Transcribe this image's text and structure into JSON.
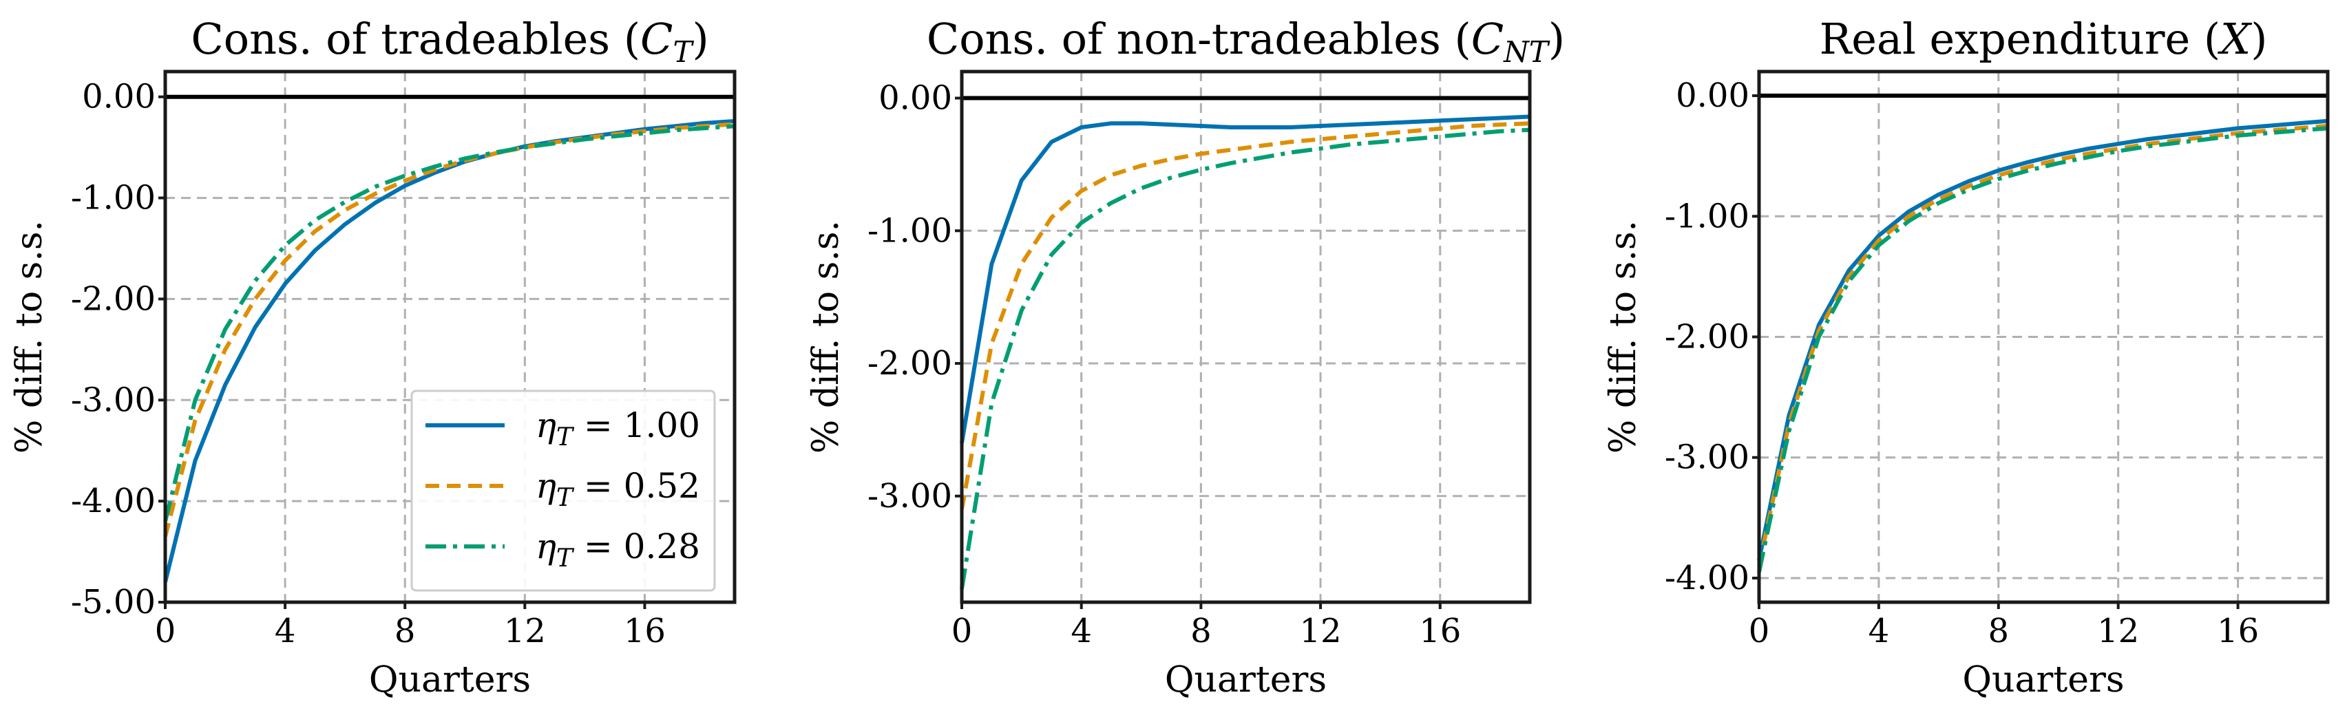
{
  "colors": {
    "series": [
      "#0072b2",
      "#de8f05",
      "#029e73"
    ]
  },
  "legend": {
    "placement": "lower-right",
    "panel_index": 0,
    "entries": [
      {
        "symbol": "η",
        "sub": "T",
        "value": " = 1.00"
      },
      {
        "symbol": "η",
        "sub": "T",
        "value": " = 0.52"
      },
      {
        "symbol": "η",
        "sub": "T",
        "value": " = 0.28"
      }
    ]
  },
  "chart_data": [
    {
      "type": "line",
      "title_text": "Cons. of tradeables (",
      "title_sym": "C",
      "title_sub": "T",
      "title_end": ")",
      "xlabel": "Quarters",
      "ylabel": "% diff. to s.s.",
      "xlim": [
        0,
        19
      ],
      "ylim": [
        -5.0,
        0.25
      ],
      "xticks": [
        0,
        4,
        8,
        12,
        16
      ],
      "yticks": [
        0.0,
        -1.0,
        -2.0,
        -3.0,
        -4.0,
        -5.0
      ],
      "ytick_labels": [
        "0.00",
        "-1.00",
        "-2.00",
        "-3.00",
        "-4.00",
        "-5.00"
      ],
      "grid": true,
      "x": [
        0,
        1,
        2,
        3,
        4,
        5,
        6,
        7,
        8,
        9,
        10,
        11,
        12,
        13,
        14,
        15,
        16,
        17,
        18,
        19
      ],
      "series": [
        {
          "name": "ηT = 1.00",
          "style": "solid",
          "values": [
            -4.8,
            -3.6,
            -2.85,
            -2.28,
            -1.85,
            -1.52,
            -1.26,
            -1.05,
            -0.88,
            -0.75,
            -0.64,
            -0.56,
            -0.49,
            -0.44,
            -0.4,
            -0.36,
            -0.32,
            -0.29,
            -0.26,
            -0.24
          ]
        },
        {
          "name": "ηT = 0.52",
          "style": "dashed",
          "values": [
            -4.35,
            -3.2,
            -2.5,
            -2.0,
            -1.62,
            -1.33,
            -1.12,
            -0.96,
            -0.83,
            -0.72,
            -0.63,
            -0.56,
            -0.5,
            -0.45,
            -0.41,
            -0.37,
            -0.34,
            -0.31,
            -0.29,
            -0.27
          ]
        },
        {
          "name": "ηT = 0.28",
          "style": "dashdot",
          "values": [
            -4.2,
            -3.0,
            -2.3,
            -1.82,
            -1.47,
            -1.22,
            -1.04,
            -0.89,
            -0.78,
            -0.69,
            -0.61,
            -0.55,
            -0.5,
            -0.46,
            -0.42,
            -0.39,
            -0.36,
            -0.33,
            -0.31,
            -0.29
          ]
        }
      ]
    },
    {
      "type": "line",
      "title_text": "Cons. of non-tradeables (",
      "title_sym": "C",
      "title_sub": "NT",
      "title_end": ")",
      "xlabel": "Quarters",
      "ylabel": "% diff. to s.s.",
      "xlim": [
        0,
        19
      ],
      "ylim": [
        -3.8,
        0.2
      ],
      "xticks": [
        0,
        4,
        8,
        12,
        16
      ],
      "yticks": [
        0.0,
        -1.0,
        -2.0,
        -3.0
      ],
      "ytick_labels": [
        "0.00",
        "-1.00",
        "-2.00",
        "-3.00"
      ],
      "grid": true,
      "x": [
        0,
        1,
        2,
        3,
        4,
        5,
        6,
        7,
        8,
        9,
        10,
        11,
        12,
        13,
        14,
        15,
        16,
        17,
        18,
        19
      ],
      "series": [
        {
          "name": "ηT = 1.00",
          "style": "solid",
          "values": [
            -2.6,
            -1.25,
            -0.62,
            -0.33,
            -0.22,
            -0.19,
            -0.19,
            -0.2,
            -0.21,
            -0.22,
            -0.22,
            -0.22,
            -0.21,
            -0.2,
            -0.19,
            -0.18,
            -0.17,
            -0.16,
            -0.15,
            -0.14
          ]
        },
        {
          "name": "ηT = 0.52",
          "style": "dashed",
          "values": [
            -3.1,
            -1.85,
            -1.25,
            -0.9,
            -0.7,
            -0.58,
            -0.51,
            -0.46,
            -0.42,
            -0.39,
            -0.36,
            -0.33,
            -0.31,
            -0.29,
            -0.27,
            -0.25,
            -0.23,
            -0.21,
            -0.2,
            -0.19
          ]
        },
        {
          "name": "ηT = 0.28",
          "style": "dashdot",
          "values": [
            -3.7,
            -2.3,
            -1.6,
            -1.18,
            -0.94,
            -0.79,
            -0.68,
            -0.6,
            -0.54,
            -0.49,
            -0.45,
            -0.41,
            -0.38,
            -0.35,
            -0.33,
            -0.31,
            -0.29,
            -0.27,
            -0.25,
            -0.24
          ]
        }
      ]
    },
    {
      "type": "line",
      "title_text": "Real expenditure (",
      "title_sym": "X",
      "title_sub": "",
      "title_end": ")",
      "xlabel": "Quarters",
      "ylabel": "% diff. to s.s.",
      "xlim": [
        0,
        19
      ],
      "ylim": [
        -4.2,
        0.2
      ],
      "xticks": [
        0,
        4,
        8,
        12,
        16
      ],
      "yticks": [
        0.0,
        -1.0,
        -2.0,
        -3.0,
        -4.0
      ],
      "ytick_labels": [
        "0.00",
        "-1.00",
        "-2.00",
        "-3.00",
        "-4.00"
      ],
      "grid": true,
      "x": [
        0,
        1,
        2,
        3,
        4,
        5,
        6,
        7,
        8,
        9,
        10,
        11,
        12,
        13,
        14,
        15,
        16,
        17,
        18,
        19
      ],
      "series": [
        {
          "name": "ηT = 1.00",
          "style": "solid",
          "values": [
            -3.85,
            -2.65,
            -1.9,
            -1.45,
            -1.16,
            -0.96,
            -0.82,
            -0.71,
            -0.62,
            -0.55,
            -0.49,
            -0.44,
            -0.4,
            -0.36,
            -0.33,
            -0.3,
            -0.27,
            -0.25,
            -0.23,
            -0.21
          ]
        },
        {
          "name": "ηT = 0.52",
          "style": "dashed",
          "values": [
            -3.9,
            -2.72,
            -1.95,
            -1.5,
            -1.2,
            -1.0,
            -0.86,
            -0.75,
            -0.66,
            -0.59,
            -0.53,
            -0.48,
            -0.44,
            -0.4,
            -0.37,
            -0.34,
            -0.31,
            -0.29,
            -0.27,
            -0.25
          ]
        },
        {
          "name": "ηT = 0.28",
          "style": "dashdot",
          "values": [
            -3.95,
            -2.78,
            -2.0,
            -1.54,
            -1.24,
            -1.04,
            -0.89,
            -0.78,
            -0.69,
            -0.62,
            -0.56,
            -0.51,
            -0.46,
            -0.42,
            -0.39,
            -0.36,
            -0.33,
            -0.31,
            -0.29,
            -0.27
          ]
        }
      ]
    }
  ]
}
